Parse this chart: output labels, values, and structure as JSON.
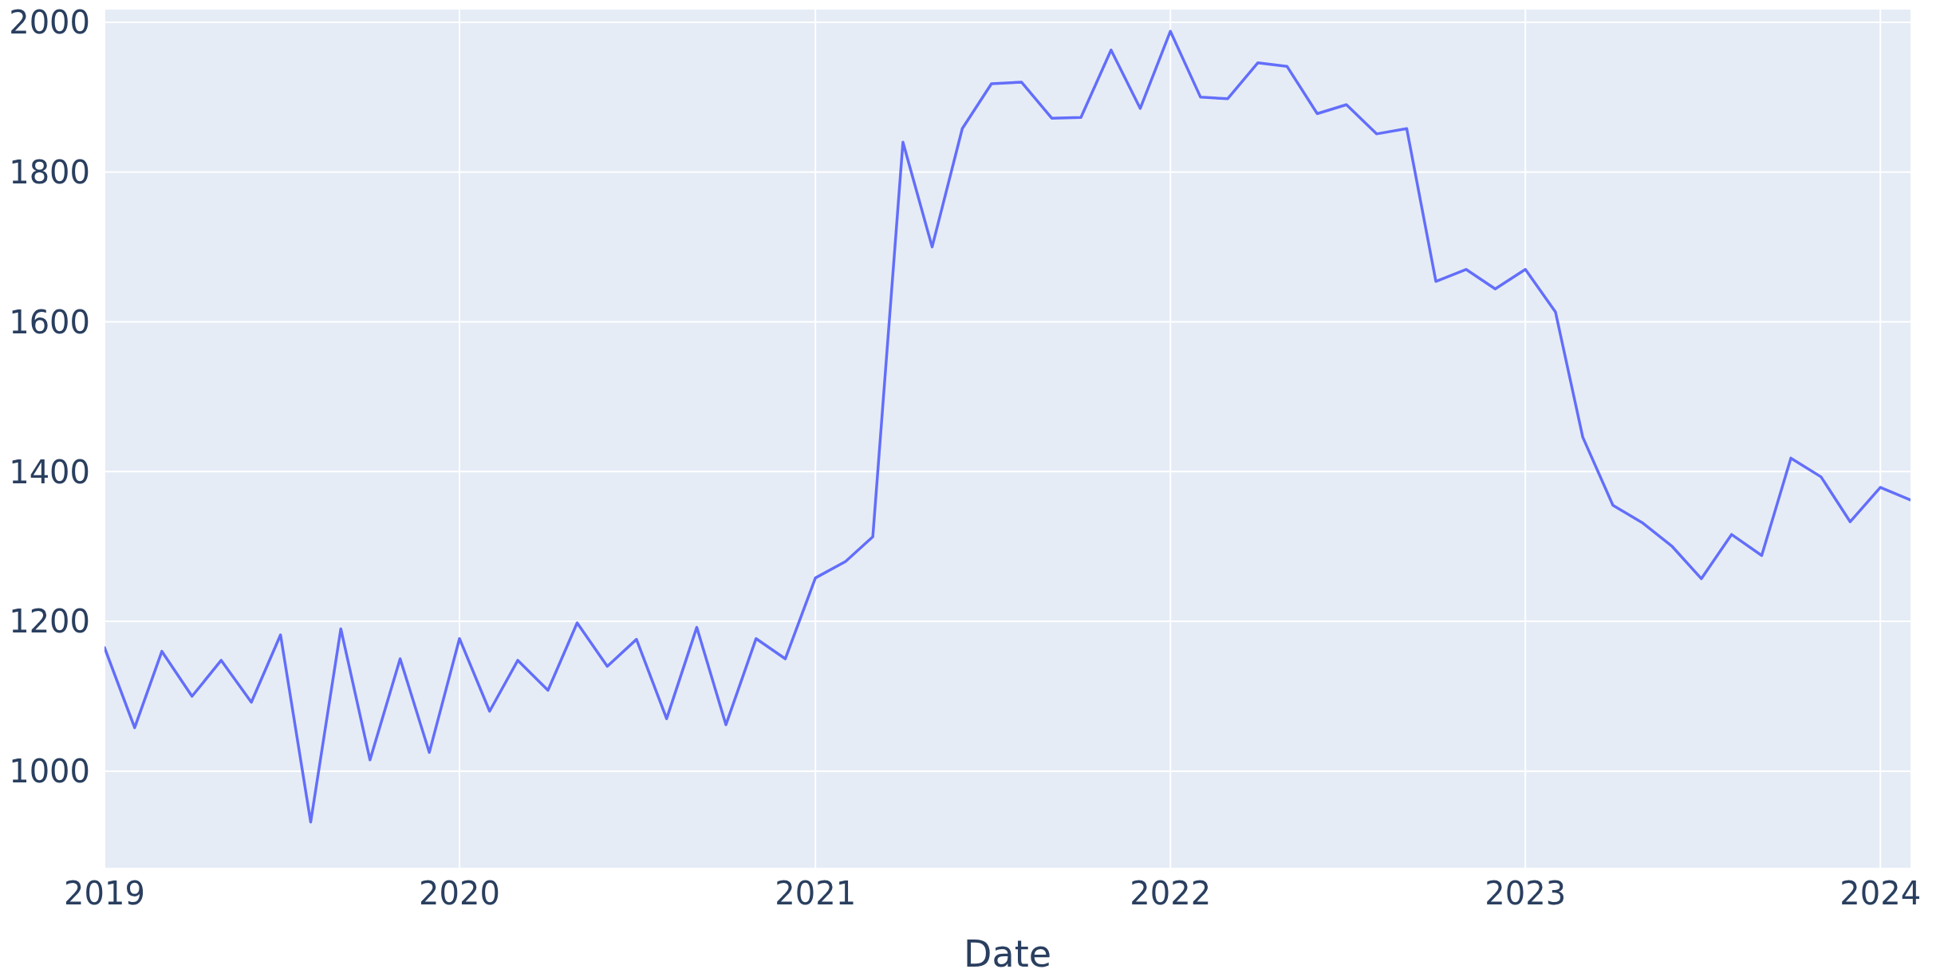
{
  "chart_data": {
    "type": "line",
    "xlabel": "Date",
    "x": [
      "2019-01",
      "2019-02",
      "2019-03",
      "2019-04",
      "2019-05",
      "2019-06",
      "2019-07",
      "2019-08",
      "2019-09",
      "2019-10",
      "2019-11",
      "2019-12",
      "2020-01",
      "2020-02",
      "2020-03",
      "2020-04",
      "2020-05",
      "2020-06",
      "2020-07",
      "2020-08",
      "2020-09",
      "2020-10",
      "2020-11",
      "2020-12",
      "2021-01",
      "2021-02",
      "2021-03",
      "2021-04",
      "2021-05",
      "2021-06",
      "2021-07",
      "2021-08",
      "2021-09",
      "2021-10",
      "2021-11",
      "2021-12",
      "2022-01",
      "2022-02",
      "2022-03",
      "2022-04",
      "2022-05",
      "2022-06",
      "2022-07",
      "2022-08",
      "2022-09",
      "2022-10",
      "2022-11",
      "2022-12",
      "2023-01",
      "2023-02",
      "2023-03",
      "2023-04",
      "2023-05",
      "2023-06",
      "2023-07",
      "2023-08",
      "2023-09",
      "2023-10",
      "2023-11",
      "2023-12",
      "2024-01",
      "2024-02"
    ],
    "series": [
      {
        "color": "#636efa",
        "values": [
          1165,
          1058,
          1160,
          1100,
          1148,
          1092,
          1182,
          932,
          1190,
          1015,
          1150,
          1025,
          1177,
          1080,
          1148,
          1108,
          1198,
          1140,
          1176,
          1070,
          1192,
          1062,
          1177,
          1150,
          1258,
          1280,
          1313,
          1840,
          1700,
          1858,
          1918,
          1920,
          1872,
          1873,
          1963,
          1885,
          1988,
          1900,
          1898,
          1946,
          1941,
          1878,
          1890,
          1851,
          1858,
          1654,
          1670,
          1644,
          1670,
          1613,
          1446,
          1355,
          1332,
          1300,
          1257,
          1316,
          1288,
          1418,
          1393,
          1333,
          1379,
          1362
        ]
      }
    ],
    "xlim": [
      "2019-01",
      "2024-02"
    ],
    "xticks": [
      "2019",
      "2020",
      "2021",
      "2022",
      "2023",
      "2024"
    ],
    "ylim": [
      871,
      2017
    ],
    "yticks": [
      1000,
      1200,
      1400,
      1600,
      1800,
      2000
    ],
    "grid": true,
    "marker": "none",
    "line_style": "solid"
  }
}
